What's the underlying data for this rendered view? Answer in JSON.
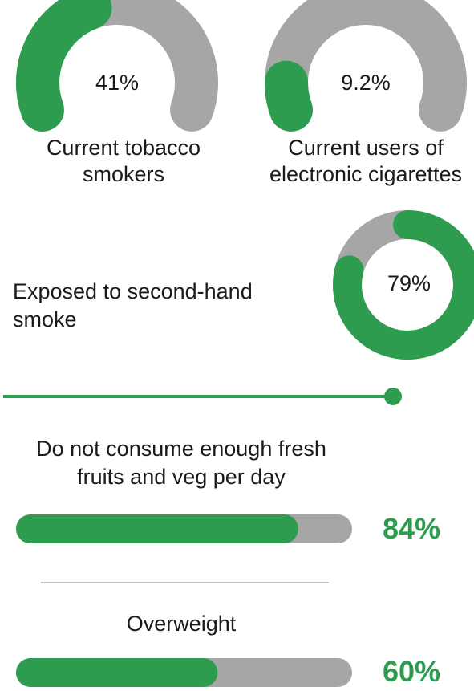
{
  "colors": {
    "green": "#2e9c4e",
    "gray": "#a6a6a6",
    "divider": "#bfbfbf"
  },
  "chart_data": [
    {
      "type": "gauge",
      "id": "tobacco",
      "label": "Current  tobacco smokers",
      "label_lines": [
        "Current  tobacco",
        "smokers"
      ],
      "value": 41,
      "value_text": "41%",
      "max": 100
    },
    {
      "type": "gauge",
      "id": "ecig",
      "label": "Current  users of electronic cigarettes",
      "label_lines": [
        "Current  users of",
        "electronic cigarettes"
      ],
      "value": 9.2,
      "value_text": "9.2%",
      "max": 100
    },
    {
      "type": "donut",
      "id": "secondhand",
      "label": "Exposed to second-hand smoke",
      "label_lines": [
        "Exposed to second-hand",
        "smoke"
      ],
      "value": 79,
      "value_text": "79%",
      "max": 100
    },
    {
      "type": "bar",
      "id": "fruitveg",
      "label": "Do not consume enough fresh fruits and veg per day",
      "label_lines": [
        "Do not consume enough fresh",
        "fruits and veg per day"
      ],
      "value": 84,
      "value_text": "84%",
      "max": 100
    },
    {
      "type": "bar",
      "id": "overweight",
      "label": "Overweight",
      "label_lines": [
        "Overweight"
      ],
      "value": 60,
      "value_text": "60%",
      "max": 100
    }
  ]
}
